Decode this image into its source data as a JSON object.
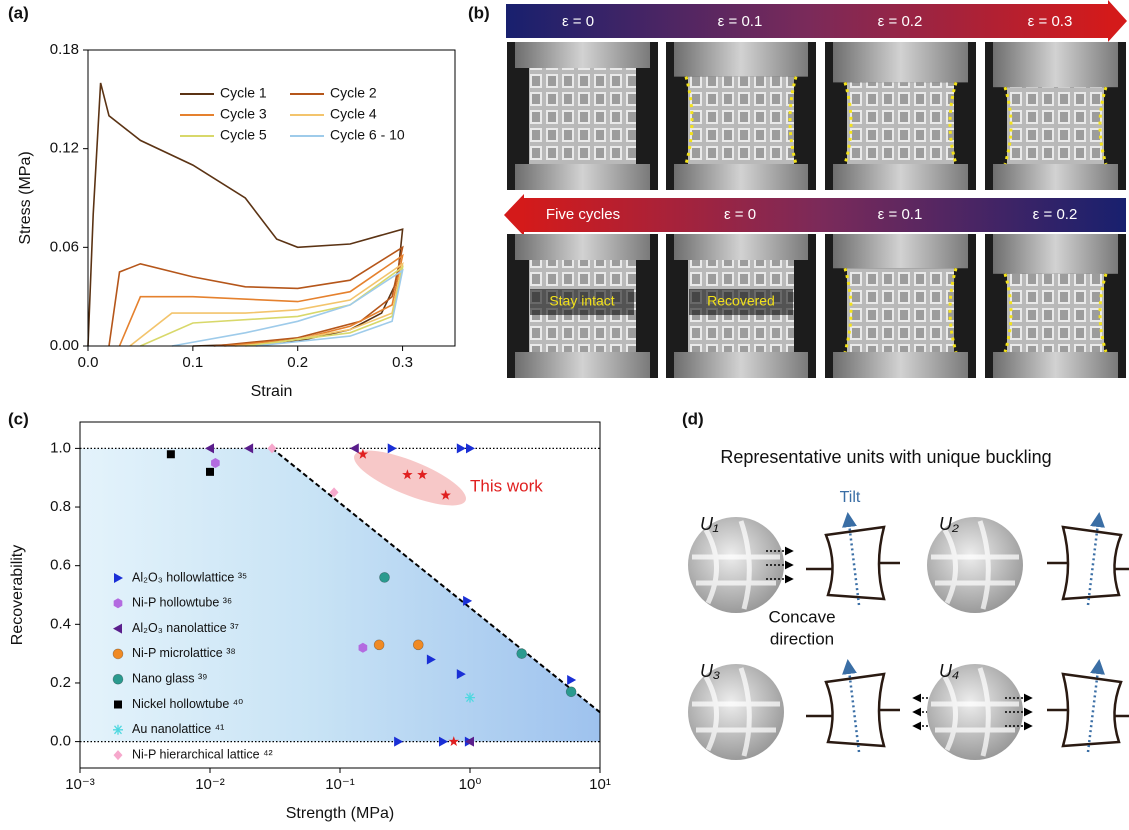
{
  "chart_data": [
    {
      "type": "line",
      "panel_label": "(a)",
      "xlabel": "Strain",
      "ylabel": "Stress (MPa)",
      "xlim": [
        0,
        0.35
      ],
      "xticks": [
        {
          "value": 0,
          "label": "0.0"
        },
        0.1,
        0.2,
        0.3
      ],
      "ylim": [
        0,
        0.18
      ],
      "yticks": [
        {
          "value": 0,
          "label": "0.00"
        },
        0.06,
        0.12,
        0.18
      ],
      "series": [
        {
          "name": "Cycle 1",
          "color": "#5b3314",
          "x": [
            0,
            0.005,
            0.012,
            0.02,
            0.05,
            0.1,
            0.15,
            0.18,
            0.2,
            0.25,
            0.3,
            0.295,
            0.28,
            0.25,
            0.2,
            0.15,
            0.1
          ],
          "values": [
            0,
            0.08,
            0.16,
            0.14,
            0.125,
            0.11,
            0.09,
            0.065,
            0.06,
            0.062,
            0.071,
            0.04,
            0.02,
            0.01,
            0.003,
            0.001,
            0
          ]
        },
        {
          "name": "Cycle 2",
          "color": "#b5561a",
          "x": [
            0.02,
            0.03,
            0.05,
            0.1,
            0.15,
            0.2,
            0.25,
            0.3,
            0.29,
            0.26,
            0.2,
            0.12
          ],
          "values": [
            0,
            0.045,
            0.05,
            0.042,
            0.036,
            0.035,
            0.04,
            0.06,
            0.03,
            0.015,
            0.005,
            0
          ]
        },
        {
          "name": "Cycle 3",
          "color": "#e5812e",
          "x": [
            0.03,
            0.05,
            0.1,
            0.2,
            0.25,
            0.3,
            0.29,
            0.25,
            0.2,
            0.13
          ],
          "values": [
            0,
            0.03,
            0.03,
            0.027,
            0.033,
            0.055,
            0.025,
            0.012,
            0.004,
            0
          ]
        },
        {
          "name": "Cycle 4",
          "color": "#f3c46c",
          "x": [
            0.04,
            0.08,
            0.15,
            0.2,
            0.25,
            0.3,
            0.29,
            0.25,
            0.18,
            0.14
          ],
          "values": [
            0,
            0.02,
            0.02,
            0.022,
            0.028,
            0.05,
            0.02,
            0.01,
            0.002,
            0
          ]
        },
        {
          "name": "Cycle 5",
          "color": "#d8d86a",
          "x": [
            0.05,
            0.1,
            0.2,
            0.25,
            0.3,
            0.29,
            0.25,
            0.15
          ],
          "values": [
            0,
            0.014,
            0.018,
            0.025,
            0.048,
            0.018,
            0.008,
            0
          ]
        },
        {
          "name": "Cycle 6 - 10",
          "color": "#9ecbea",
          "x": [
            0.08,
            0.15,
            0.2,
            0.25,
            0.3,
            0.29,
            0.25,
            0.16
          ],
          "values": [
            0,
            0.008,
            0.015,
            0.025,
            0.046,
            0.015,
            0.006,
            0
          ]
        }
      ]
    },
    {
      "type": "scatter",
      "panel_label": "(c)",
      "xlabel": "Strength (MPa)",
      "ylabel": "Recoverability",
      "xscale": "log",
      "xlim": [
        0.001,
        10
      ],
      "xticks": [
        {
          "value": 0.001,
          "label": "10⁻³"
        },
        {
          "value": 0.01,
          "label": "10⁻²"
        },
        {
          "value": 0.1,
          "label": "10⁻¹"
        },
        {
          "value": 1,
          "label": "10⁰"
        },
        {
          "value": 10,
          "label": "10¹"
        }
      ],
      "ylim": [
        -0.09,
        1.09
      ],
      "yticks": [
        {
          "value": 0,
          "label": "0.0"
        },
        0.2,
        0.4,
        0.6,
        0.8,
        {
          "value": 1,
          "label": "1.0"
        }
      ],
      "hlines": [
        1,
        0
      ],
      "boundary": {
        "x": [
          0.03,
          10
        ],
        "values": [
          1,
          0.1
        ],
        "color": "#000000"
      },
      "series": [
        {
          "name": "Al₂O₃ hollowlattice ³⁵",
          "color": "#1a2fd6",
          "marker": "triangle-right",
          "x": [
            0.25,
            0.85,
            1.0,
            0.95,
            0.5,
            0.85,
            6.0,
            0.28,
            0.62,
            0.98
          ],
          "values": [
            1,
            1,
            1,
            0.48,
            0.28,
            0.23,
            0.21,
            0,
            0,
            0
          ]
        },
        {
          "name": "Ni-P hollowtube ³⁶",
          "color": "#b36be0",
          "marker": "hexagon",
          "x": [
            0.011,
            0.15
          ],
          "values": [
            0.95,
            0.32
          ]
        },
        {
          "name": "Al₂O₃ nanolattice ³⁷",
          "color": "#5a1e8c",
          "marker": "triangle-left",
          "x": [
            0.01,
            0.02,
            0.13,
            1.0
          ],
          "values": [
            1,
            1,
            1,
            0
          ]
        },
        {
          "name": "Ni-P microlattice ³⁸",
          "color": "#f08a24",
          "marker": "circle",
          "x": [
            0.2,
            0.4
          ],
          "values": [
            0.33,
            0.33
          ]
        },
        {
          "name": "Nano glass ³⁹",
          "color": "#2a9a8e",
          "marker": "circle",
          "x": [
            0.22,
            2.5,
            6.0
          ],
          "values": [
            0.56,
            0.3,
            0.17
          ]
        },
        {
          "name": "Nickel hollowtube ⁴⁰",
          "color": "#000000",
          "marker": "square",
          "x": [
            0.005,
            0.01
          ],
          "values": [
            0.98,
            0.92
          ]
        },
        {
          "name": "Au nanolattice ⁴¹",
          "color": "#4fd8e0",
          "marker": "asterisk",
          "x": [
            1.0
          ],
          "values": [
            0.15
          ]
        },
        {
          "name": "Ni-P hierarchical lattice ⁴²",
          "color": "#f6a8cc",
          "marker": "diamond",
          "x": [
            0.03,
            0.09
          ],
          "values": [
            1,
            0.85
          ]
        },
        {
          "name": "This work",
          "color": "#e02020",
          "marker": "star",
          "in_legend": false,
          "x": [
            0.15,
            0.33,
            0.43,
            0.65,
            0.75
          ],
          "values": [
            0.98,
            0.91,
            0.91,
            0.84,
            0
          ]
        }
      ]
    }
  ],
  "panel_b": {
    "panel_label": "(b)",
    "top_labels": [
      "ε = 0",
      "ε = 0.1",
      "ε = 0.2",
      "ε = 0.3"
    ],
    "bottom_labels": [
      "Five cycles",
      "ε = 0",
      "ε = 0.1",
      "ε = 0.2"
    ],
    "captions": [
      "Stay intact",
      "Recovered"
    ]
  },
  "panel_d": {
    "panel_label": "(d)",
    "title": "Representative units with unique buckling",
    "units": [
      "U₁",
      "U₂",
      "U₃",
      "U₄"
    ],
    "tilt": "Tilt",
    "concave": [
      "Concave",
      "direction"
    ]
  }
}
